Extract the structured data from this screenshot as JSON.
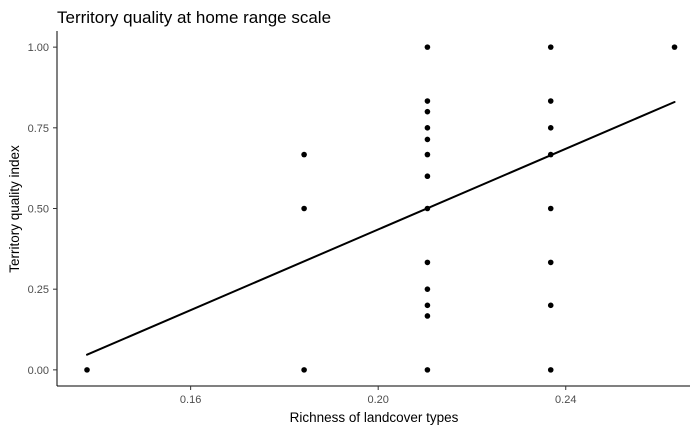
{
  "chart_data": {
    "type": "scatter",
    "title": "Territory quality at home range scale",
    "xlabel": "Richness of landcover types",
    "ylabel": "Territory quality index",
    "xlim": [
      0.1315,
      0.2665
    ],
    "ylim": [
      -0.05,
      1.05
    ],
    "x_ticks": [
      0.16,
      0.2,
      0.24
    ],
    "x_tick_labels": [
      "0.16",
      "0.20",
      "0.24"
    ],
    "y_ticks": [
      0,
      0.25,
      0.5,
      0.75,
      1.0
    ],
    "y_tick_labels": [
      "0.00",
      "0.25",
      "0.50",
      "0.75",
      "1.00"
    ],
    "grid": false,
    "points": [
      {
        "x": 0.1379,
        "y": 0.0
      },
      {
        "x": 0.1842,
        "y": 0.0
      },
      {
        "x": 0.1842,
        "y": 0.5
      },
      {
        "x": 0.1842,
        "y": 0.667
      },
      {
        "x": 0.2105,
        "y": 0.0
      },
      {
        "x": 0.2105,
        "y": 0.167
      },
      {
        "x": 0.2105,
        "y": 0.2
      },
      {
        "x": 0.2105,
        "y": 0.25
      },
      {
        "x": 0.2105,
        "y": 0.333
      },
      {
        "x": 0.2105,
        "y": 0.5
      },
      {
        "x": 0.2105,
        "y": 0.6
      },
      {
        "x": 0.2105,
        "y": 0.667
      },
      {
        "x": 0.2105,
        "y": 0.714
      },
      {
        "x": 0.2105,
        "y": 0.75
      },
      {
        "x": 0.2105,
        "y": 0.8
      },
      {
        "x": 0.2105,
        "y": 0.833
      },
      {
        "x": 0.2105,
        "y": 1.0
      },
      {
        "x": 0.2368,
        "y": 0.0
      },
      {
        "x": 0.2368,
        "y": 0.2
      },
      {
        "x": 0.2368,
        "y": 0.333
      },
      {
        "x": 0.2368,
        "y": 0.5
      },
      {
        "x": 0.2368,
        "y": 0.667
      },
      {
        "x": 0.2368,
        "y": 0.75
      },
      {
        "x": 0.2368,
        "y": 0.833
      },
      {
        "x": 0.2368,
        "y": 1.0
      },
      {
        "x": 0.2632,
        "y": 1.0
      }
    ],
    "fit_line": {
      "x": [
        0.1379,
        0.2632
      ],
      "y": [
        0.047,
        0.83
      ]
    },
    "colors": {
      "points": "#000000",
      "line": "#000000",
      "axis": "#000000",
      "tick_label": "#4d4d4d"
    }
  }
}
